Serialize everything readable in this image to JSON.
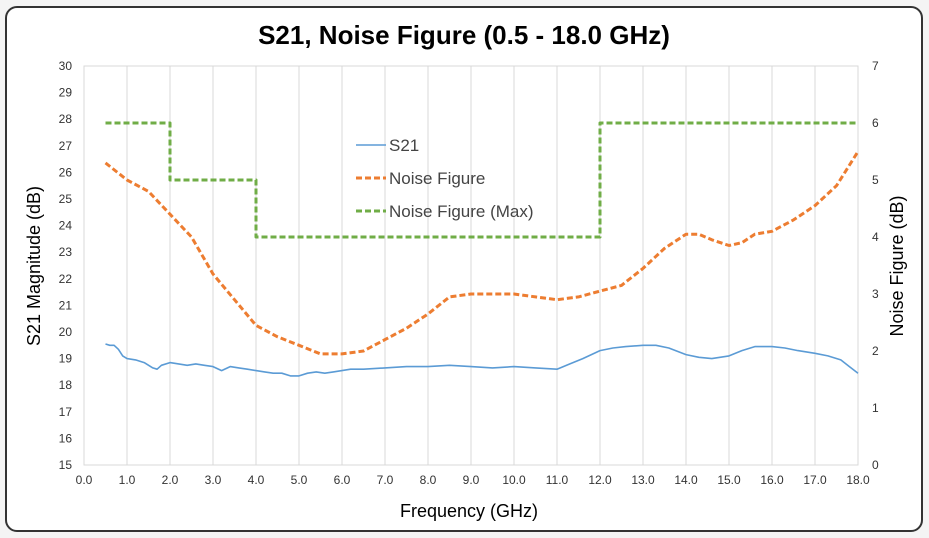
{
  "chart_data": {
    "type": "line",
    "title": "S21, Noise Figure   (0.5 - 18.0 GHz)",
    "xlabel": "Frequency (GHz)",
    "ylabel_left": "S21 Magnitude (dB)",
    "ylabel_right": "Noise Figure (dB)",
    "xlim": [
      0,
      18
    ],
    "ylim_left": [
      15,
      30
    ],
    "ylim_right": [
      0,
      7
    ],
    "grid": "vertical-x",
    "legend_position": "upper-center",
    "xticks": [
      "0.0",
      "1.0",
      "2.0",
      "3.0",
      "4.0",
      "5.0",
      "6.0",
      "7.0",
      "8.0",
      "9.0",
      "10.0",
      "11.0",
      "12.0",
      "13.0",
      "14.0",
      "15.0",
      "16.0",
      "17.0",
      "18.0"
    ],
    "yticks_left": [
      "15",
      "16",
      "17",
      "18",
      "19",
      "20",
      "21",
      "22",
      "23",
      "24",
      "25",
      "26",
      "27",
      "28",
      "29",
      "30"
    ],
    "yticks_right": [
      "0",
      "1",
      "2",
      "3",
      "4",
      "5",
      "6",
      "7"
    ],
    "series": [
      {
        "name": "S21",
        "axis": "left",
        "color": "#5b9bd5",
        "dash": "solid",
        "x": [
          0.5,
          0.6,
          0.7,
          0.8,
          0.9,
          1.0,
          1.2,
          1.4,
          1.6,
          1.7,
          1.8,
          2.0,
          2.2,
          2.4,
          2.6,
          2.8,
          3.0,
          3.2,
          3.4,
          3.6,
          3.8,
          4.0,
          4.2,
          4.4,
          4.6,
          4.8,
          5.0,
          5.2,
          5.4,
          5.6,
          5.8,
          6.0,
          6.2,
          6.5,
          7.0,
          7.5,
          8.0,
          8.5,
          9.0,
          9.5,
          10.0,
          10.5,
          11.0,
          11.3,
          11.6,
          12.0,
          12.3,
          12.6,
          13.0,
          13.3,
          13.6,
          14.0,
          14.3,
          14.6,
          15.0,
          15.3,
          15.6,
          16.0,
          16.3,
          16.6,
          17.0,
          17.3,
          17.6,
          17.8,
          18.0
        ],
        "y": [
          19.55,
          19.5,
          19.5,
          19.35,
          19.1,
          19.0,
          18.95,
          18.85,
          18.65,
          18.6,
          18.75,
          18.85,
          18.8,
          18.75,
          18.8,
          18.75,
          18.7,
          18.55,
          18.7,
          18.65,
          18.6,
          18.55,
          18.5,
          18.45,
          18.45,
          18.35,
          18.35,
          18.45,
          18.5,
          18.45,
          18.5,
          18.55,
          18.6,
          18.6,
          18.65,
          18.7,
          18.7,
          18.75,
          18.7,
          18.65,
          18.7,
          18.65,
          18.6,
          18.8,
          19.0,
          19.3,
          19.4,
          19.45,
          19.5,
          19.5,
          19.4,
          19.15,
          19.05,
          19.0,
          19.1,
          19.3,
          19.45,
          19.45,
          19.4,
          19.3,
          19.2,
          19.1,
          18.95,
          18.7,
          18.45
        ]
      },
      {
        "name": "Noise Figure",
        "axis": "right",
        "color": "#ed7d31",
        "dash": "dashed",
        "x": [
          0.5,
          1.0,
          1.5,
          2.0,
          2.5,
          3.0,
          3.5,
          4.0,
          4.5,
          5.0,
          5.5,
          6.0,
          6.5,
          7.0,
          7.5,
          8.0,
          8.5,
          9.0,
          9.5,
          10.0,
          10.5,
          11.0,
          11.5,
          12.0,
          12.5,
          13.0,
          13.5,
          14.0,
          14.3,
          14.6,
          15.0,
          15.3,
          15.6,
          16.0,
          16.5,
          17.0,
          17.5,
          18.0
        ],
        "y": [
          5.3,
          5.0,
          4.8,
          4.4,
          4.0,
          3.35,
          2.9,
          2.45,
          2.25,
          2.1,
          1.95,
          1.95,
          2.0,
          2.2,
          2.4,
          2.65,
          2.95,
          3.0,
          3.0,
          3.0,
          2.95,
          2.9,
          2.95,
          3.05,
          3.15,
          3.45,
          3.8,
          4.05,
          4.05,
          3.95,
          3.85,
          3.9,
          4.05,
          4.1,
          4.3,
          4.55,
          4.9,
          5.5
        ]
      },
      {
        "name": "Noise Figure (Max)",
        "axis": "right",
        "color": "#70ad47",
        "dash": "dashed",
        "x": [
          0.5,
          2.0,
          2.0,
          4.0,
          4.0,
          12.0,
          12.0,
          18.0
        ],
        "y": [
          6,
          6,
          5,
          5,
          4,
          4,
          6,
          6
        ]
      }
    ]
  }
}
